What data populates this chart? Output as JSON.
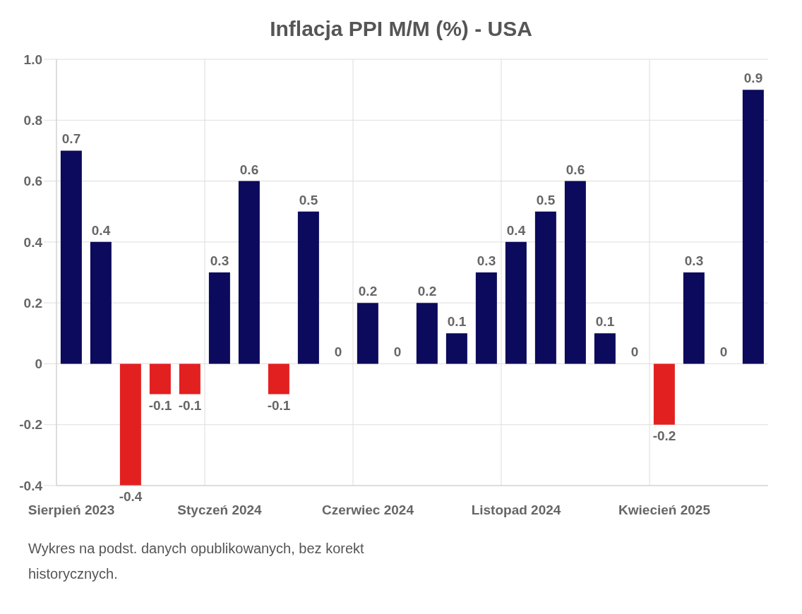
{
  "chart_data": {
    "type": "bar",
    "title": "Inflacja PPI M/M (%) - USA",
    "categories": [
      "Sierpień 2023",
      null,
      null,
      null,
      null,
      "Styczeń 2024",
      null,
      null,
      null,
      null,
      "Czerwiec 2024",
      null,
      null,
      null,
      null,
      "Listopad 2024",
      null,
      null,
      null,
      null,
      "Kwiecień 2025",
      null,
      null,
      null
    ],
    "values": [
      0.7,
      0.4,
      -0.4,
      -0.1,
      -0.1,
      0.3,
      0.6,
      -0.1,
      0.5,
      0,
      0.2,
      0,
      0.2,
      0.1,
      0.3,
      0.4,
      0.5,
      0.6,
      0.1,
      0,
      -0.2,
      0.3,
      0,
      0.9
    ],
    "colors": [
      "#0c0a5c",
      "#0c0a5c",
      "#e32020",
      "#e32020",
      "#e32020",
      "#0c0a5c",
      "#0c0a5c",
      "#e32020",
      "#0c0a5c",
      "#0c0a5c",
      "#0c0a5c",
      "#0c0a5c",
      "#0c0a5c",
      "#0c0a5c",
      "#0c0a5c",
      "#0c0a5c",
      "#0c0a5c",
      "#0c0a5c",
      "#0c0a5c",
      "#0c0a5c",
      "#e32020",
      "#0c0a5c",
      "#0c0a5c",
      "#0c0a5c"
    ],
    "ylim": [
      -0.4,
      1.0
    ],
    "yticks": [
      -0.4,
      -0.2,
      0,
      0.2,
      0.4,
      0.6,
      0.8,
      {
        "value": 1.0,
        "label": "1.0"
      }
    ],
    "grid": true,
    "data_labels": true,
    "annotations": [
      "Wykres na podst. danych opublikowanych, bez korekt historycznych."
    ]
  }
}
